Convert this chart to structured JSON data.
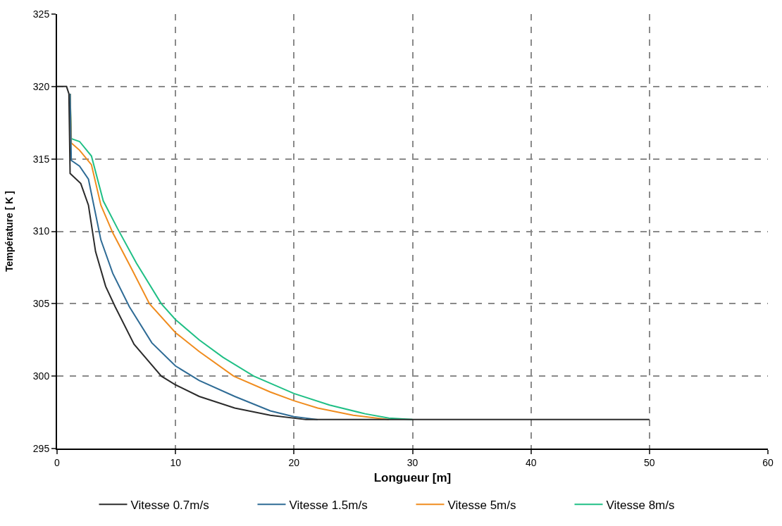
{
  "chart_data": {
    "type": "line",
    "xlabel": "Longueur [m]",
    "ylabel": "Température [ K ]",
    "xlim": [
      0,
      60
    ],
    "xticks": [
      0,
      10,
      20,
      30,
      40,
      50,
      60
    ],
    "ylim": [
      295,
      325
    ],
    "yticks": [
      295,
      300,
      305,
      310,
      315,
      320,
      325
    ],
    "grid": true,
    "legend": "bottom",
    "line_style": "solid",
    "series": [
      {
        "name": "Vitesse 0.7m/s",
        "color": "#2b2b2b",
        "x": [
          0,
          0.8,
          1.0,
          1.1,
          2.0,
          2.65,
          3.25,
          4.1,
          4.9,
          6.5,
          8.8,
          10,
          12,
          15,
          18,
          21,
          25,
          30,
          40,
          50
        ],
        "values": [
          320,
          320,
          319.5,
          314.0,
          313.3,
          311.8,
          308.6,
          306.2,
          304.8,
          302.2,
          300,
          299.4,
          298.6,
          297.8,
          297.3,
          297.0,
          297,
          297,
          297,
          297
        ]
      },
      {
        "name": "Vitesse 1.5m/s",
        "color": "#2e6b95",
        "x": [
          1.1,
          1.2,
          1.9,
          2.65,
          3.1,
          3.7,
          4.7,
          6.1,
          8,
          10,
          12,
          15,
          18,
          20,
          22
        ],
        "values": [
          319.5,
          314.9,
          314.5,
          313.6,
          311.8,
          309.4,
          307.1,
          304.8,
          302.3,
          300.7,
          299.7,
          298.6,
          297.6,
          297.2,
          297.0
        ]
      },
      {
        "name": "Vitesse 5m/s",
        "color": "#f08c1e",
        "x": [
          1.1,
          1.2,
          1.9,
          2.9,
          3.7,
          4.7,
          6.3,
          7.8,
          10,
          12,
          14.9,
          18,
          20,
          22,
          25,
          28
        ],
        "values": [
          319.5,
          316.1,
          315.6,
          314.6,
          311.8,
          309.9,
          307.4,
          305,
          303.0,
          301.7,
          300,
          298.9,
          298.3,
          297.8,
          297.3,
          297.0
        ]
      },
      {
        "name": "Vitesse 8m/s",
        "color": "#1fbf85",
        "x": [
          1.1,
          1.2,
          1.9,
          2.9,
          3.9,
          5.1,
          6.7,
          8.8,
          10,
          12,
          14,
          16.6,
          20,
          23,
          26,
          28,
          30
        ],
        "values": [
          319.5,
          316.4,
          316.2,
          315.2,
          312.1,
          310.2,
          307.8,
          305,
          303.9,
          302.5,
          301.3,
          300,
          298.8,
          298.0,
          297.4,
          297.1,
          297.0
        ]
      }
    ]
  }
}
